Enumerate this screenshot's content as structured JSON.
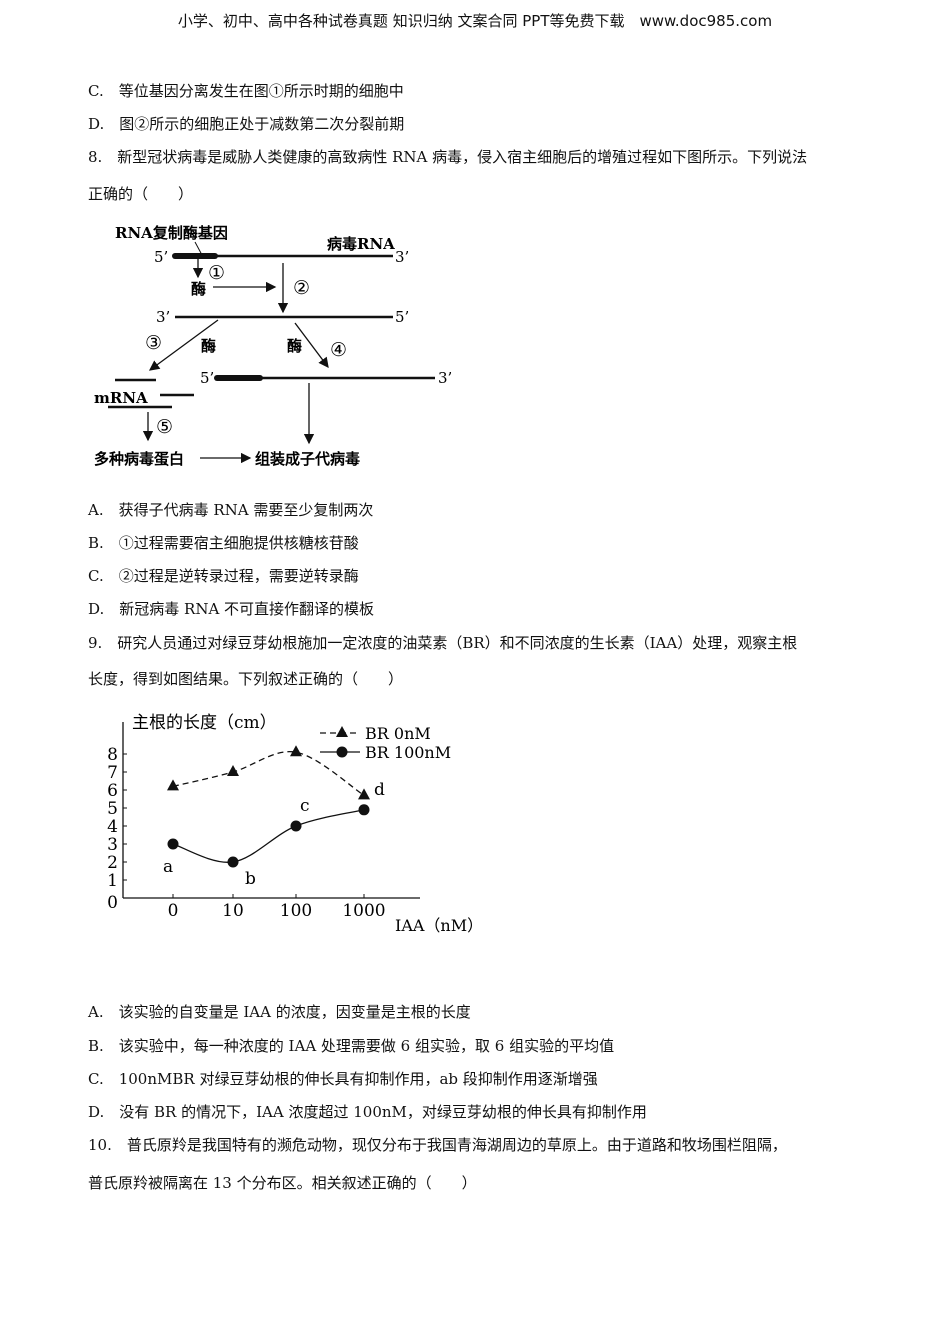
{
  "header": "小学、初中、高中各种试卷真题 知识归纳 文案合同 PPT等免费下载　www.doc985.com",
  "q7_options": [
    "C.　等位基因分离发生在图①所示时期的细胞中",
    "D.　图②所示的细胞正处于减数第二次分裂前期"
  ],
  "q8": {
    "stem1": "8.　新型冠状病毒是威胁人类健康的高致病性 RNA 病毒，侵入宿主细胞后的增殖过程如下图所示。下列说法",
    "stem2": "正确的（　　）",
    "diagram": {
      "gene_label": "RNA复制酶基因",
      "virus_rna": "病毒RNA",
      "p5": "5’",
      "p3": "3’",
      "enzyme": "酶",
      "step1": "①",
      "step2": "②",
      "step3": "③",
      "step4": "④",
      "step5": "⑤",
      "mrna": "mRNA",
      "proteins": "多种病毒蛋白",
      "assemble": "组装成子代病毒"
    },
    "options": [
      "A.　获得子代病毒 RNA 需要至少复制两次",
      "B.　①过程需要宿主细胞提供核糖核苷酸",
      "C.　②过程是逆转录过程，需要逆转录酶",
      "D.　新冠病毒 RNA 不可直接作翻译的模板"
    ]
  },
  "q9": {
    "stem1": "9.　研究人员通过对绿豆芽幼根施加一定浓度的油菜素（BR）和不同浓度的生长素（IAA）处理，观察主根",
    "stem2": "长度，得到如图结果。下列叙述正确的（　　）",
    "options": [
      "A.　该实验的自变量是 IAA 的浓度，因变量是主根的长度",
      "B.　该实验中，每一种浓度的 IAA 处理需要做 6 组实验，取 6 组实验的平均值",
      "C.　100nMBR 对绿豆芽幼根的伸长具有抑制作用，ab 段抑制作用逐渐增强",
      "D.　没有 BR 的情况下，IAA 浓度超过 100nM，对绿豆芽幼根的伸长具有抑制作用"
    ]
  },
  "chart_data": {
    "type": "line",
    "ylabel": "主根的长度（cm）",
    "xlabel": "IAA（nM）",
    "categories": [
      "0",
      "10",
      "100",
      "1000"
    ],
    "yticks": [
      "0",
      "1",
      "2",
      "3",
      "4",
      "5",
      "6",
      "7",
      "8"
    ],
    "ylim": [
      0,
      9
    ],
    "legend": "top-right",
    "series": [
      {
        "name": "BR 0nM",
        "style": "dashed",
        "marker": "triangle",
        "values": [
          6.2,
          7.0,
          8.1,
          5.7
        ]
      },
      {
        "name": "BR 100nM",
        "style": "solid",
        "marker": "circle",
        "values": [
          3.0,
          2.0,
          4.0,
          4.9
        ],
        "point_labels": [
          "a",
          "b",
          "c",
          "d"
        ]
      }
    ]
  },
  "q10": {
    "stem1": "10.　普氏原羚是我国特有的濒危动物，现仅分布于我国青海湖周边的草原上。由于道路和牧场围栏阻隔，",
    "stem2": "普氏原羚被隔离在 13 个分布区。相关叙述正确的（　　）"
  }
}
